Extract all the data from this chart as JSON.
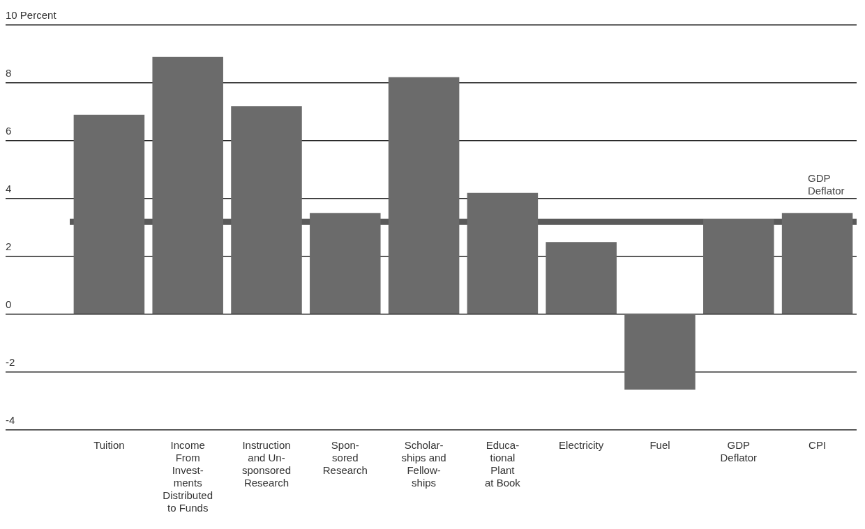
{
  "chart_data": {
    "type": "bar",
    "categories": [
      "Tuition",
      "Income\nFrom\nInvest-\nments\nDistributed\nto Funds",
      "Instruction\nand Un-\nsponsored\nResearch",
      "Spon-\nsored\nResearch",
      "Scholar-\nships and\nFellow-\nships",
      "Educa-\ntional\nPlant\nat Book",
      "Electricity",
      "Fuel",
      "GDP\nDeflator",
      "CPI"
    ],
    "values": [
      6.9,
      8.9,
      7.2,
      3.5,
      8.2,
      4.2,
      2.5,
      -2.6,
      3.3,
      3.5
    ],
    "color": "#6b6b6b",
    "ylim": [
      -4,
      10
    ],
    "yticks": [
      -4,
      -2,
      0,
      2,
      4,
      6,
      8,
      {
        "value": 10,
        "label": "10 Percent"
      }
    ],
    "grid": "y",
    "ref_lines": [
      {
        "axis": "y",
        "value": 3.2,
        "label": "GDP\nDeflator",
        "color": "#5a5a5a"
      }
    ]
  }
}
